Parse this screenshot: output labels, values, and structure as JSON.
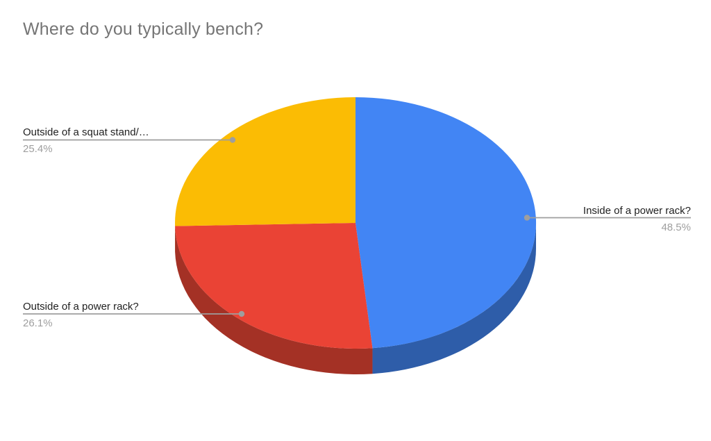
{
  "title": "Where do you typically bench?",
  "chart_data": {
    "type": "pie",
    "title": "Where do you typically bench?",
    "style": "3d",
    "direction": "clockwise",
    "start_angle_deg": 0,
    "legend_position": "outside-callouts",
    "slices": [
      {
        "label": "Inside of a power rack?",
        "value": 48.5,
        "pct_label": "48.5%",
        "color": "#4285F4",
        "side_color": "#2E5DA9"
      },
      {
        "label": "Outside of a power rack?",
        "value": 26.1,
        "pct_label": "26.1%",
        "color": "#EA4335",
        "side_color": "#A43125"
      },
      {
        "label": "Outside of a squat stand/…",
        "value": 25.4,
        "pct_label": "25.4%",
        "color": "#FBBC04",
        "side_color": "#B08403"
      }
    ]
  },
  "colors": {
    "background": "#ffffff",
    "title_text": "#757575",
    "label_text": "#212121",
    "pct_text": "#9e9e9e",
    "leader_line": "#9e9e9e",
    "leader_dot": "#9e9e9e"
  }
}
